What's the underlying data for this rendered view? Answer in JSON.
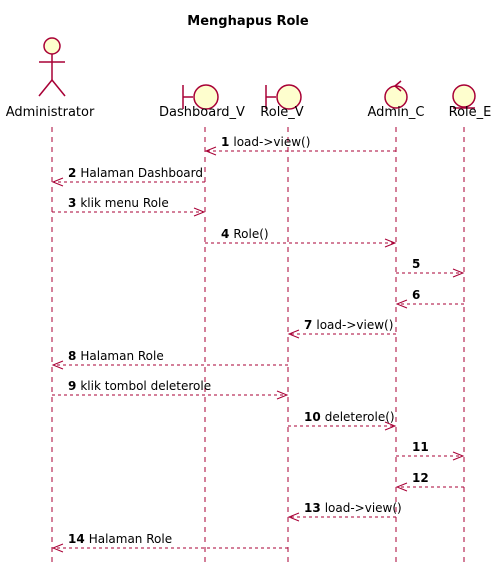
{
  "title": "Menghapus Role",
  "colors": {
    "line": "#A80036",
    "fill": "#FEFECE",
    "lifeline": "#A80036",
    "text": "#000000"
  },
  "participants": [
    {
      "id": "admin",
      "label": "Administrator",
      "kind": "actor"
    },
    {
      "id": "dash",
      "label": "Dashboard_V",
      "kind": "boundary"
    },
    {
      "id": "role_v",
      "label": "Role_V",
      "kind": "boundary"
    },
    {
      "id": "admin_c",
      "label": "Admin_C",
      "kind": "control"
    },
    {
      "id": "role_e",
      "label": "Role_E",
      "kind": "entity"
    }
  ],
  "messages": [
    {
      "num": "1",
      "text": "load->view()",
      "from": "admin_c",
      "to": "dash"
    },
    {
      "num": "2",
      "text": "Halaman Dashboard",
      "from": "dash",
      "to": "admin"
    },
    {
      "num": "3",
      "text": "klik menu Role",
      "from": "admin",
      "to": "dash"
    },
    {
      "num": "4",
      "text": "Role()",
      "from": "dash",
      "to": "admin_c"
    },
    {
      "num": "5",
      "text": "",
      "from": "admin_c",
      "to": "role_e"
    },
    {
      "num": "6",
      "text": "",
      "from": "role_e",
      "to": "admin_c"
    },
    {
      "num": "7",
      "text": "load->view()",
      "from": "admin_c",
      "to": "role_v"
    },
    {
      "num": "8",
      "text": "Halaman Role",
      "from": "role_v",
      "to": "admin"
    },
    {
      "num": "9",
      "text": "klik tombol deleterole",
      "from": "admin",
      "to": "role_v"
    },
    {
      "num": "10",
      "text": "deleterole()",
      "from": "role_v",
      "to": "admin_c"
    },
    {
      "num": "11",
      "text": "",
      "from": "admin_c",
      "to": "role_e"
    },
    {
      "num": "12",
      "text": "",
      "from": "role_e",
      "to": "admin_c"
    },
    {
      "num": "13",
      "text": "load->view()",
      "from": "admin_c",
      "to": "role_v"
    },
    {
      "num": "14",
      "text": "Halaman Role",
      "from": "role_v",
      "to": "admin"
    }
  ]
}
